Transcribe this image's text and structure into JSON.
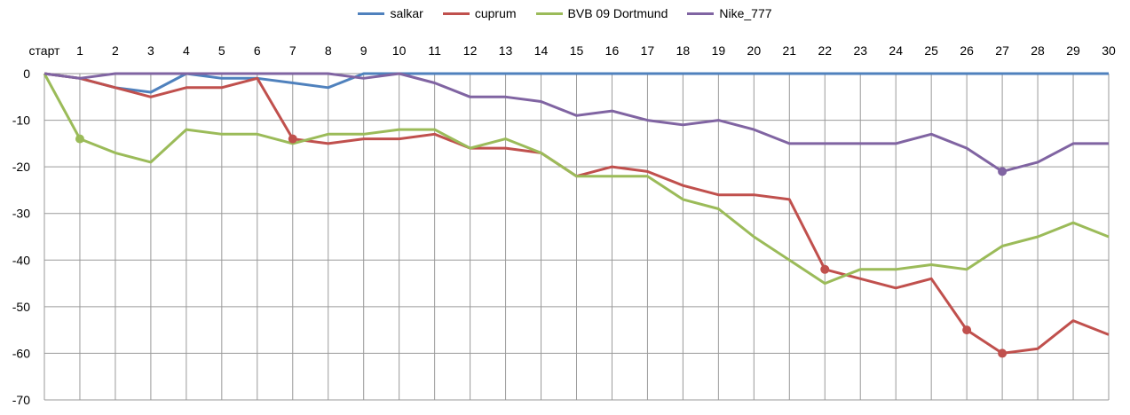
{
  "chart_data": {
    "type": "line",
    "title": "",
    "xlabel": "",
    "ylabel": "",
    "categories": [
      "старт",
      "1",
      "2",
      "3",
      "4",
      "5",
      "6",
      "7",
      "8",
      "9",
      "10",
      "11",
      "12",
      "13",
      "14",
      "15",
      "16",
      "17",
      "18",
      "19",
      "20",
      "21",
      "22",
      "23",
      "24",
      "25",
      "26",
      "27",
      "28",
      "29",
      "30"
    ],
    "ylim": [
      -70,
      0
    ],
    "yticks": [
      0,
      -10,
      -20,
      -30,
      -40,
      -50,
      -60,
      -70
    ],
    "grid": true,
    "legend_position": "top",
    "series": [
      {
        "name": "salkar",
        "color": "#4F81BD",
        "values": [
          0,
          -1,
          -3,
          -4,
          0,
          -1,
          -1,
          -2,
          -3,
          0,
          0,
          0,
          0,
          0,
          0,
          0,
          0,
          0,
          0,
          0,
          0,
          0,
          0,
          0,
          0,
          0,
          0,
          0,
          0,
          0,
          0
        ],
        "markers": []
      },
      {
        "name": "cuprum",
        "color": "#C0504D",
        "values": [
          0,
          -1,
          -3,
          -5,
          -3,
          -3,
          -1,
          -14,
          -15,
          -14,
          -14,
          -13,
          -16,
          -16,
          -17,
          -22,
          -20,
          -21,
          -24,
          -26,
          -26,
          -27,
          -42,
          -44,
          -46,
          -44,
          -55,
          -60,
          -59,
          -53,
          -56
        ],
        "markers": [
          7,
          22,
          26,
          27
        ]
      },
      {
        "name": "BVB 09 Dortmund",
        "color": "#9BBB59",
        "values": [
          0,
          -14,
          -17,
          -19,
          -12,
          -13,
          -13,
          -15,
          -13,
          -13,
          -12,
          -12,
          -16,
          -14,
          -17,
          -22,
          -22,
          -22,
          -27,
          -29,
          -35,
          -40,
          -45,
          -42,
          -42,
          -41,
          -42,
          -37,
          -35,
          -32,
          -35
        ],
        "markers": [
          1
        ]
      },
      {
        "name": "Nike_777",
        "color": "#8064A2",
        "values": [
          0,
          -1,
          0,
          0,
          0,
          0,
          0,
          0,
          0,
          -1,
          0,
          -2,
          -5,
          -5,
          -6,
          -9,
          -8,
          -10,
          -11,
          -10,
          -12,
          -15,
          -15,
          -15,
          -15,
          -13,
          -16,
          -21,
          -19,
          -15,
          -15
        ],
        "markers": [
          27
        ]
      }
    ]
  }
}
